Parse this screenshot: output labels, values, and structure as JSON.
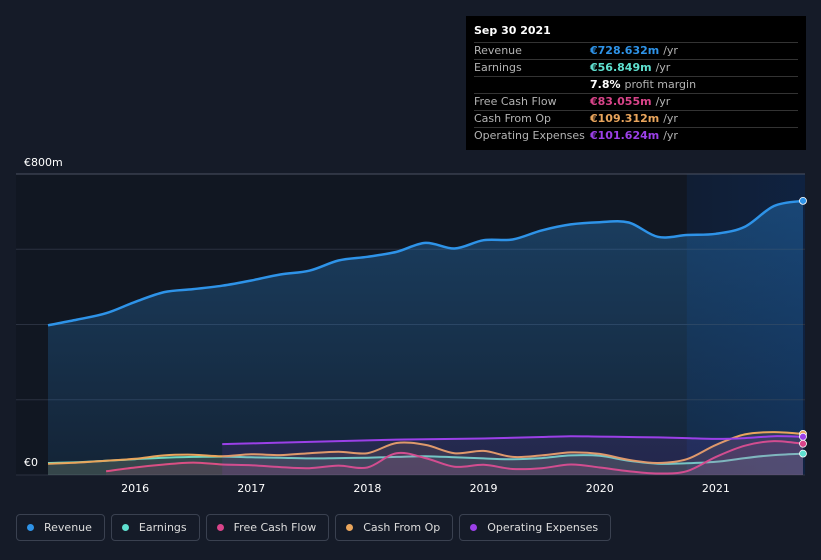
{
  "tooltip": {
    "date": "Sep 30 2021",
    "rows": [
      {
        "label": "Revenue",
        "value": "€728.632m",
        "unit": "/yr",
        "color": "#2e93e8"
      },
      {
        "label": "Earnings",
        "value": "€56.849m",
        "unit": "/yr",
        "color": "#5fe0d0"
      },
      {
        "label": "",
        "value": "7.8%",
        "unit": "profit margin",
        "color": "#ffffff"
      },
      {
        "label": "Free Cash Flow",
        "value": "€83.055m",
        "unit": "/yr",
        "color": "#d9448a"
      },
      {
        "label": "Cash From Op",
        "value": "€109.312m",
        "unit": "/yr",
        "color": "#e9a55c"
      },
      {
        "label": "Operating Expenses",
        "value": "€101.624m",
        "unit": "/yr",
        "color": "#9b40e8"
      }
    ]
  },
  "legend": [
    {
      "label": "Revenue",
      "color": "#2e93e8"
    },
    {
      "label": "Earnings",
      "color": "#5fe0d0"
    },
    {
      "label": "Free Cash Flow",
      "color": "#d9448a"
    },
    {
      "label": "Cash From Op",
      "color": "#e9a55c"
    },
    {
      "label": "Operating Expenses",
      "color": "#9b40e8"
    }
  ],
  "chart_data": {
    "type": "area",
    "y_top_label": "€800m",
    "y_bottom_label": "€0",
    "ylim": [
      0,
      800
    ],
    "xlim": [
      2015.25,
      2021.75
    ],
    "x_tick_labels": [
      "2016",
      "2017",
      "2018",
      "2019",
      "2020",
      "2021"
    ],
    "x_ticks": [
      2016,
      2017,
      2018,
      2019,
      2020,
      2021
    ],
    "highlight_start": 2020.75,
    "series": [
      {
        "name": "Revenue",
        "color": "#2e93e8",
        "points": [
          [
            2015.25,
            398
          ],
          [
            2015.5,
            413
          ],
          [
            2015.75,
            430
          ],
          [
            2016.0,
            460
          ],
          [
            2016.25,
            486
          ],
          [
            2016.5,
            494
          ],
          [
            2016.75,
            503
          ],
          [
            2017.0,
            517
          ],
          [
            2017.25,
            533
          ],
          [
            2017.5,
            543
          ],
          [
            2017.75,
            570
          ],
          [
            2018.0,
            580
          ],
          [
            2018.25,
            593
          ],
          [
            2018.5,
            617
          ],
          [
            2018.75,
            602
          ],
          [
            2019.0,
            624
          ],
          [
            2019.25,
            626
          ],
          [
            2019.5,
            650
          ],
          [
            2019.75,
            666
          ],
          [
            2020.0,
            672
          ],
          [
            2020.25,
            671
          ],
          [
            2020.5,
            633
          ],
          [
            2020.75,
            638
          ],
          [
            2021.0,
            641
          ],
          [
            2021.25,
            660
          ],
          [
            2021.5,
            715
          ],
          [
            2021.75,
            728.632
          ]
        ]
      },
      {
        "name": "Earnings",
        "color": "#5fe0d0",
        "points": [
          [
            2015.25,
            32
          ],
          [
            2015.5,
            34
          ],
          [
            2015.75,
            38
          ],
          [
            2016.0,
            42
          ],
          [
            2016.25,
            46
          ],
          [
            2016.5,
            48
          ],
          [
            2016.75,
            49
          ],
          [
            2017.0,
            47
          ],
          [
            2017.25,
            46
          ],
          [
            2017.5,
            44
          ],
          [
            2017.75,
            45
          ],
          [
            2018.0,
            46
          ],
          [
            2018.25,
            48
          ],
          [
            2018.5,
            50
          ],
          [
            2018.75,
            47
          ],
          [
            2019.0,
            44
          ],
          [
            2019.25,
            42
          ],
          [
            2019.5,
            45
          ],
          [
            2019.75,
            52
          ],
          [
            2020.0,
            51
          ],
          [
            2020.25,
            38
          ],
          [
            2020.5,
            30
          ],
          [
            2020.75,
            31
          ],
          [
            2021.0,
            35
          ],
          [
            2021.25,
            45
          ],
          [
            2021.5,
            53
          ],
          [
            2021.75,
            56.849
          ]
        ]
      },
      {
        "name": "Free Cash Flow",
        "color": "#d9448a",
        "points": [
          [
            2015.75,
            10
          ],
          [
            2016.0,
            20
          ],
          [
            2016.25,
            28
          ],
          [
            2016.5,
            33
          ],
          [
            2016.75,
            28
          ],
          [
            2017.0,
            26
          ],
          [
            2017.25,
            21
          ],
          [
            2017.5,
            18
          ],
          [
            2017.75,
            25
          ],
          [
            2018.0,
            20
          ],
          [
            2018.25,
            58
          ],
          [
            2018.5,
            45
          ],
          [
            2018.75,
            22
          ],
          [
            2019.0,
            27
          ],
          [
            2019.25,
            16
          ],
          [
            2019.5,
            18
          ],
          [
            2019.75,
            28
          ],
          [
            2020.0,
            20
          ],
          [
            2020.25,
            10
          ],
          [
            2020.5,
            4
          ],
          [
            2020.75,
            10
          ],
          [
            2021.0,
            48
          ],
          [
            2021.25,
            78
          ],
          [
            2021.5,
            90
          ],
          [
            2021.75,
            83.055
          ]
        ]
      },
      {
        "name": "Cash From Op",
        "color": "#e9a55c",
        "points": [
          [
            2015.25,
            30
          ],
          [
            2015.5,
            33
          ],
          [
            2015.75,
            38
          ],
          [
            2016.0,
            43
          ],
          [
            2016.25,
            52
          ],
          [
            2016.5,
            54
          ],
          [
            2016.75,
            50
          ],
          [
            2017.0,
            55
          ],
          [
            2017.25,
            53
          ],
          [
            2017.5,
            58
          ],
          [
            2017.75,
            62
          ],
          [
            2018.0,
            58
          ],
          [
            2018.25,
            85
          ],
          [
            2018.5,
            80
          ],
          [
            2018.75,
            58
          ],
          [
            2019.0,
            64
          ],
          [
            2019.25,
            48
          ],
          [
            2019.5,
            52
          ],
          [
            2019.75,
            60
          ],
          [
            2020.0,
            56
          ],
          [
            2020.25,
            40
          ],
          [
            2020.5,
            32
          ],
          [
            2020.75,
            42
          ],
          [
            2021.0,
            80
          ],
          [
            2021.25,
            108
          ],
          [
            2021.5,
            114
          ],
          [
            2021.75,
            109.312
          ]
        ]
      },
      {
        "name": "Operating Expenses",
        "color": "#9b40e8",
        "points": [
          [
            2016.75,
            82
          ],
          [
            2017.0,
            84
          ],
          [
            2017.25,
            86
          ],
          [
            2017.5,
            88
          ],
          [
            2017.75,
            90
          ],
          [
            2018.0,
            92
          ],
          [
            2018.25,
            94
          ],
          [
            2018.5,
            95
          ],
          [
            2018.75,
            96
          ],
          [
            2019.0,
            97
          ],
          [
            2019.25,
            99
          ],
          [
            2019.5,
            101
          ],
          [
            2019.75,
            103
          ],
          [
            2020.0,
            102
          ],
          [
            2020.25,
            101
          ],
          [
            2020.5,
            100
          ],
          [
            2020.75,
            98
          ],
          [
            2021.0,
            96
          ],
          [
            2021.25,
            98
          ],
          [
            2021.5,
            103
          ],
          [
            2021.75,
            101.624
          ]
        ]
      }
    ]
  }
}
